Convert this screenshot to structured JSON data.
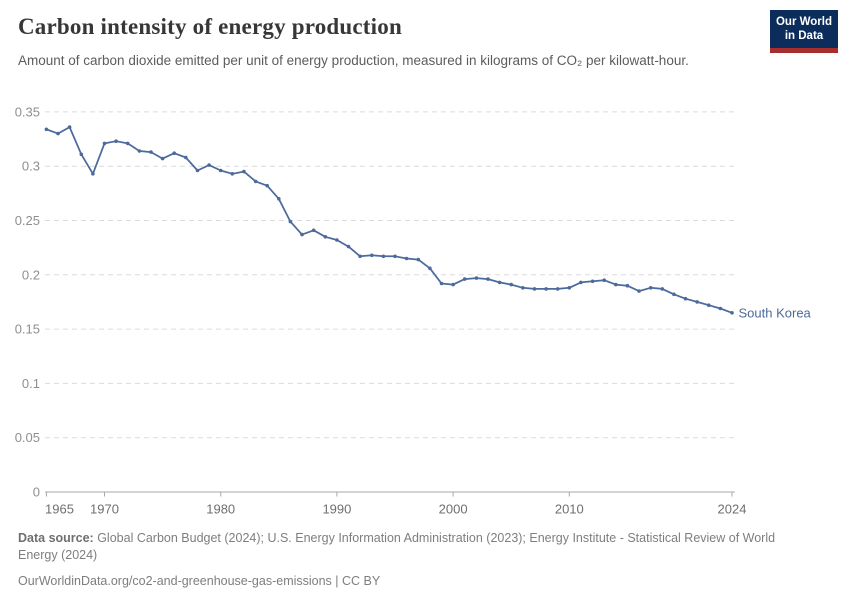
{
  "header": {
    "title": "Carbon intensity of energy production",
    "subtitle": "Amount of carbon dioxide emitted per unit of energy production, measured in kilograms of CO₂ per kilowatt-hour.",
    "logo": {
      "line1": "Our World",
      "line2": "in Data"
    }
  },
  "chart_data": {
    "type": "line",
    "title": "Carbon intensity of energy production",
    "ylabel": "",
    "xlabel": "",
    "xlim": [
      1965,
      2024
    ],
    "ylim": [
      0,
      0.35
    ],
    "grid": "horizontal dashed",
    "legend_position": "end-of-line label",
    "xticks": [
      1965,
      1970,
      1980,
      1990,
      2000,
      2010,
      2024
    ],
    "yticks": [
      {
        "v": 0,
        "label": "0"
      },
      {
        "v": 0.05,
        "label": "0.05"
      },
      {
        "v": 0.1,
        "label": "0.1"
      },
      {
        "v": 0.15,
        "label": "0.15"
      },
      {
        "v": 0.2,
        "label": "0.2"
      },
      {
        "v": 0.25,
        "label": "0.25"
      },
      {
        "v": 0.3,
        "label": "0.3"
      },
      {
        "v": 0.35,
        "label": "0.35"
      }
    ],
    "series": [
      {
        "name": "South Korea",
        "color": "#4c6a9c",
        "x": [
          1965,
          1966,
          1967,
          1968,
          1969,
          1970,
          1971,
          1972,
          1973,
          1974,
          1975,
          1976,
          1977,
          1978,
          1979,
          1980,
          1981,
          1982,
          1983,
          1984,
          1985,
          1986,
          1987,
          1988,
          1989,
          1990,
          1991,
          1992,
          1993,
          1994,
          1995,
          1996,
          1997,
          1998,
          1999,
          2000,
          2001,
          2002,
          2003,
          2004,
          2005,
          2006,
          2007,
          2008,
          2009,
          2010,
          2011,
          2012,
          2013,
          2014,
          2015,
          2016,
          2017,
          2018,
          2019,
          2020,
          2021,
          2022,
          2023,
          2024
        ],
        "values": [
          0.334,
          0.33,
          0.336,
          0.311,
          0.293,
          0.321,
          0.323,
          0.321,
          0.314,
          0.313,
          0.307,
          0.312,
          0.308,
          0.296,
          0.301,
          0.296,
          0.293,
          0.295,
          0.286,
          0.282,
          0.27,
          0.249,
          0.237,
          0.241,
          0.235,
          0.232,
          0.226,
          0.217,
          0.218,
          0.217,
          0.217,
          0.215,
          0.214,
          0.206,
          0.192,
          0.191,
          0.196,
          0.197,
          0.196,
          0.193,
          0.191,
          0.188,
          0.187,
          0.187,
          0.187,
          0.188,
          0.193,
          0.194,
          0.195,
          0.191,
          0.19,
          0.185,
          0.188,
          0.187,
          0.182,
          0.178,
          0.175,
          0.172,
          0.169,
          0.165
        ]
      }
    ],
    "colors": {
      "line": "#4c6a9c",
      "gridline": "#dcdcdc",
      "axis": "#a8a8a8",
      "ytick_label": "#8f8f8f",
      "xtick_label": "#6f6f6f",
      "entity_label": "#4c6a9c",
      "logo_bg": "#0c2d5c",
      "logo_stripe": "#a62e2e"
    }
  },
  "footer": {
    "source_label": "Data source:",
    "source_text": " Global Carbon Budget (2024); U.S. Energy Information Administration (2023); Energy Institute - Statistical Review of World Energy (2024)",
    "citation": "OurWorldinData.org/co2-and-greenhouse-gas-emissions | CC BY"
  }
}
